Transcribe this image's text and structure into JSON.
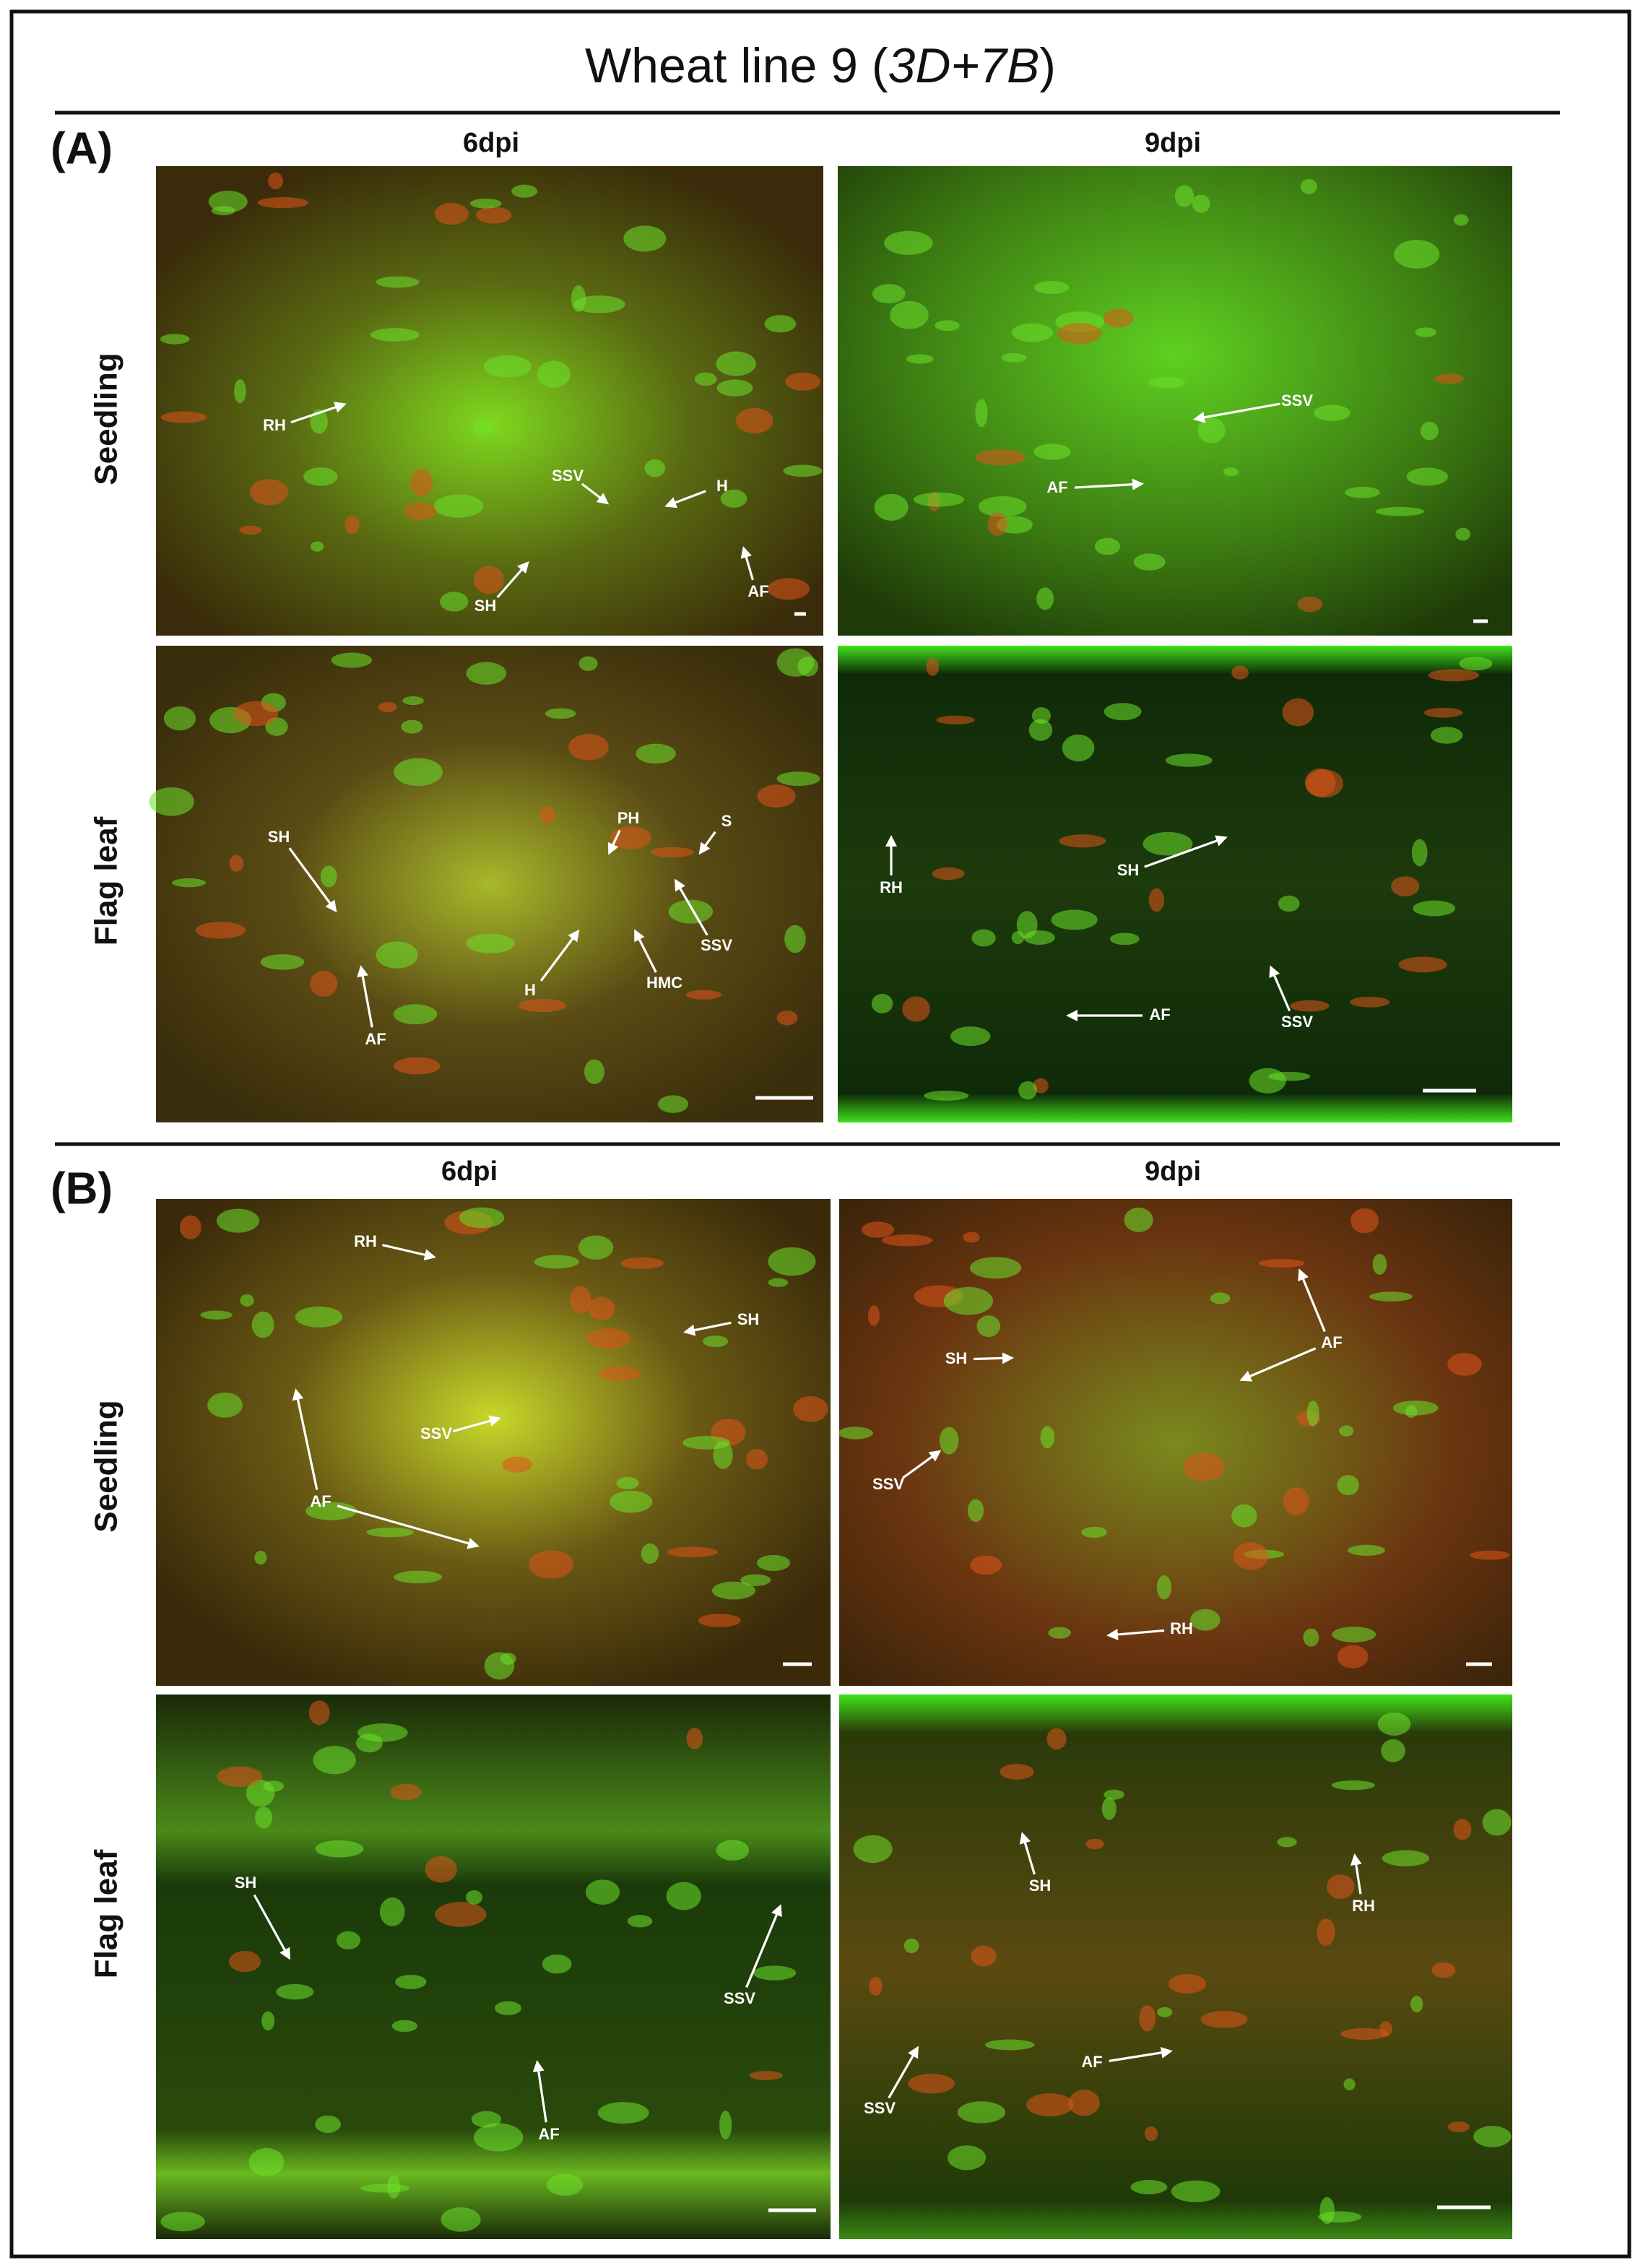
{
  "title": {
    "text": "Wheat line 9 (",
    "genotype": "3D+7B",
    "close": ")"
  },
  "panels": [
    {
      "label": "(A)",
      "columns": [
        "6dpi",
        "9dpi"
      ],
      "rows": [
        "Seedling",
        "Flag leaf"
      ],
      "images": [
        {
          "annotations": [
            "RH",
            "SSV",
            "H",
            "SH",
            "AF"
          ]
        },
        {
          "annotations": [
            "SSV",
            "AF"
          ]
        },
        {
          "annotations": [
            "PH",
            "S",
            "SH",
            "SSV",
            "H",
            "HMC",
            "AF"
          ]
        },
        {
          "annotations": [
            "RH",
            "SH",
            "AF",
            "SSV"
          ]
        }
      ]
    },
    {
      "label": "(B)",
      "columns": [
        "6dpi",
        "9dpi"
      ],
      "rows": [
        "Seedling",
        "Flag leaf"
      ],
      "images": [
        {
          "annotations": [
            "RH",
            "SH",
            "SSV",
            "AF"
          ]
        },
        {
          "annotations": [
            "SH",
            "AF",
            "SSV",
            "RH"
          ]
        },
        {
          "annotations": [
            "SH",
            "SSV",
            "AF"
          ]
        },
        {
          "annotations": [
            "SH",
            "RH",
            "AF",
            "SSV"
          ]
        }
      ]
    }
  ]
}
